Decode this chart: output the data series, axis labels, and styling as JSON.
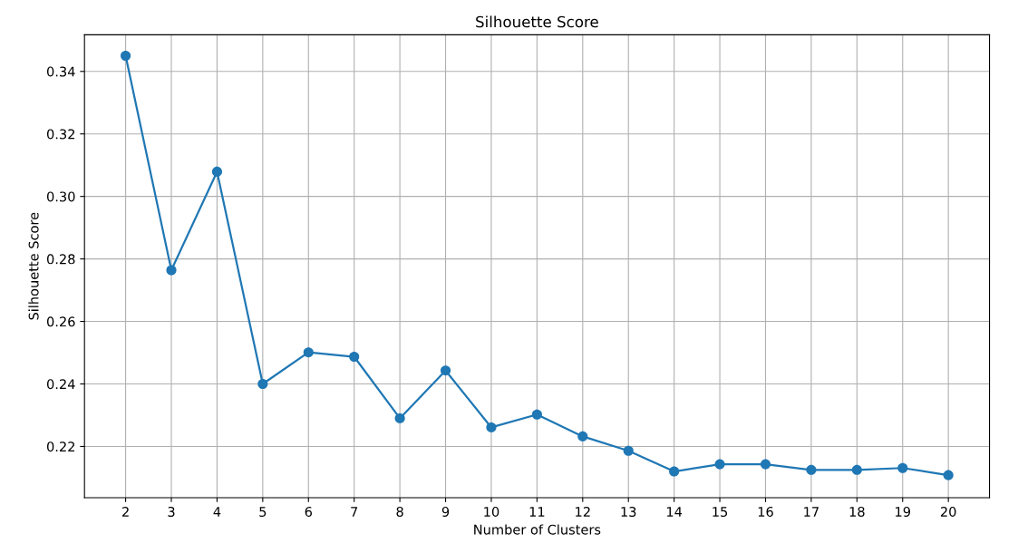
{
  "chart_data": {
    "type": "line",
    "title": "Silhouette Score",
    "xlabel": "Number of Clusters",
    "ylabel": "Silhouette Score",
    "x": [
      2,
      3,
      4,
      5,
      6,
      7,
      8,
      9,
      10,
      11,
      12,
      13,
      14,
      15,
      16,
      17,
      18,
      19,
      20
    ],
    "series": [
      {
        "color": "#1f77b4",
        "values": [
          0.345,
          0.2764,
          0.3079,
          0.24,
          0.2501,
          0.2487,
          0.229,
          0.2443,
          0.2261,
          0.2302,
          0.2232,
          0.2186,
          0.212,
          0.2143,
          0.2143,
          0.2125,
          0.2125,
          0.2131,
          0.2108
        ]
      }
    ],
    "xlim": [
      1.1,
      20.9
    ],
    "ylim": [
      0.2036,
      0.3517
    ],
    "xticks": [
      2,
      3,
      4,
      5,
      6,
      7,
      8,
      9,
      10,
      11,
      12,
      13,
      14,
      15,
      16,
      17,
      18,
      19,
      20
    ],
    "yticks": [
      {
        "value": 0.22,
        "label": "0.22"
      },
      {
        "value": 0.24,
        "label": "0.24"
      },
      {
        "value": 0.26,
        "label": "0.26"
      },
      {
        "value": 0.28,
        "label": "0.28"
      },
      {
        "value": 0.3,
        "label": "0.30"
      },
      {
        "value": 0.32,
        "label": "0.32"
      },
      {
        "value": 0.34,
        "label": "0.34"
      }
    ],
    "grid": true,
    "marker": "circle",
    "line_style": "solid"
  }
}
